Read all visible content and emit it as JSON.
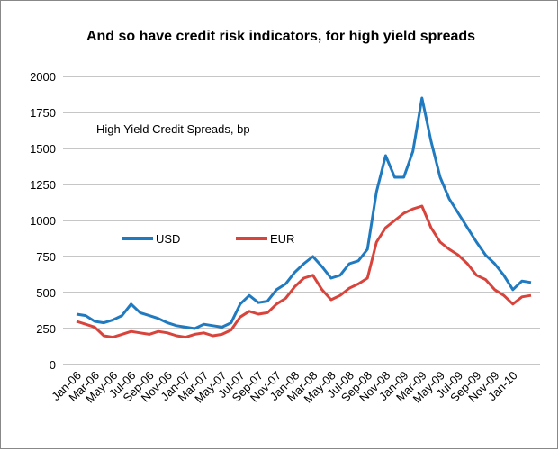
{
  "chart_data": {
    "type": "line",
    "title": "And so have credit risk indicators, for high yield spreads",
    "annotation": "High Yield Credit Spreads, bp",
    "categories": [
      "Jan-06",
      null,
      "Mar-06",
      null,
      "May-06",
      null,
      "Jul-06",
      null,
      "Sep-06",
      null,
      "Nov-06",
      null,
      "Jan-07",
      null,
      "Mar-07",
      null,
      "May-07",
      null,
      "Jul-07",
      null,
      "Sep-07",
      null,
      "Nov-07",
      null,
      "Jan-08",
      null,
      "Mar-08",
      null,
      "May-08",
      null,
      "Jul-08",
      null,
      "Sep-08",
      null,
      "Nov-08",
      null,
      "Jan-09",
      null,
      "Mar-09",
      null,
      "May-09",
      null,
      "Jul-09",
      null,
      "Sep-09",
      null,
      "Nov-09",
      null,
      "Jan-10",
      null,
      null
    ],
    "series": [
      {
        "name": "USD",
        "color": "#1f7ac0",
        "values": [
          350,
          340,
          300,
          290,
          310,
          340,
          420,
          360,
          340,
          320,
          290,
          270,
          260,
          250,
          280,
          270,
          260,
          290,
          420,
          480,
          430,
          440,
          520,
          560,
          640,
          700,
          750,
          680,
          600,
          620,
          700,
          720,
          800,
          1200,
          1450,
          1300,
          1300,
          1480,
          1850,
          1550,
          1300,
          1150,
          1050,
          950,
          850,
          760,
          700,
          620,
          520,
          580,
          570
        ]
      },
      {
        "name": "EUR",
        "color": "#d8443c",
        "values": [
          300,
          280,
          260,
          200,
          190,
          210,
          230,
          220,
          210,
          230,
          220,
          200,
          190,
          210,
          220,
          200,
          210,
          240,
          330,
          370,
          350,
          360,
          420,
          460,
          540,
          600,
          620,
          520,
          450,
          480,
          530,
          560,
          600,
          850,
          950,
          1000,
          1050,
          1080,
          1100,
          950,
          850,
          800,
          760,
          700,
          620,
          590,
          520,
          480,
          420,
          470,
          480
        ]
      }
    ],
    "ylim": [
      0,
      2000
    ],
    "yticks": [
      0,
      250,
      500,
      750,
      1000,
      1250,
      1500,
      1750,
      2000
    ],
    "grid": true
  }
}
